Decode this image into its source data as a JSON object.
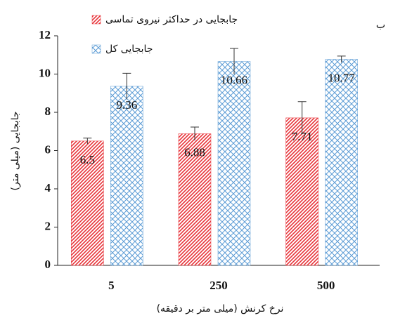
{
  "chart_data": {
    "type": "bar",
    "panel_label": "ب",
    "x_label": "نرخ کرنش (میلی متر بر دقیقه)",
    "y_label": "جابجایی (میلی متر)",
    "categories": [
      "5",
      "250",
      "500"
    ],
    "series": [
      {
        "name": "جابجایی در حداکثر نیروی تماسی",
        "color": "#e8343a",
        "values": [
          6.5,
          6.88,
          7.71
        ],
        "errors": [
          0.15,
          0.35,
          0.85
        ]
      },
      {
        "name": "جابجایی کل",
        "color": "#5b9bd5",
        "values": [
          9.36,
          10.66,
          10.77
        ],
        "errors": [
          0.68,
          0.68,
          0.17
        ]
      }
    ],
    "ylim": [
      0,
      12
    ],
    "yticks": [
      0,
      2,
      4,
      6,
      8,
      10,
      12
    ],
    "grid": false,
    "legend": "top"
  }
}
